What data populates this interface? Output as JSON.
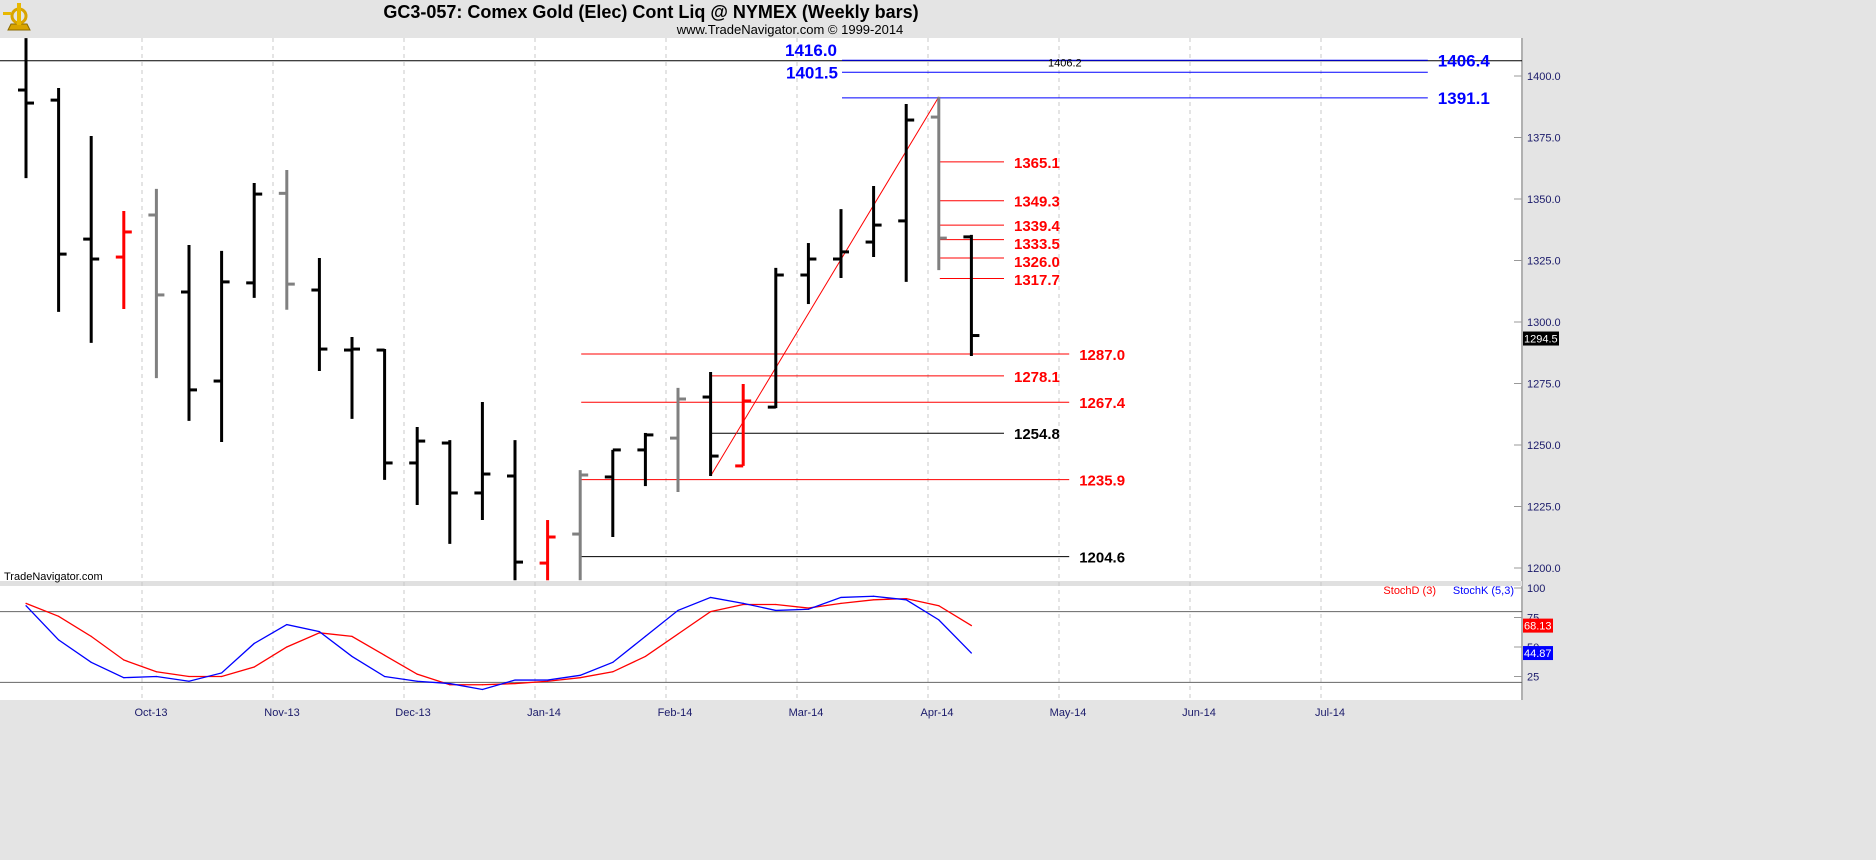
{
  "header": {
    "title": "GC3-057:  Comex Gold (Elec) Cont Liq @ NYMEX  (Weekly bars)",
    "subtitle": "www.TradeNavigator.com © 1999-2014",
    "logo_icon": "gold-sextant-logo-icon"
  },
  "watermark": "TradeNavigator.com",
  "colors": {
    "up_bar": "#000000",
    "inside_bar": "#808080",
    "outside_bar": "#ff0000",
    "blue": "#0000ff",
    "red": "#ff0000",
    "axis_bg": "#e4e4e4"
  },
  "chart_data": [
    {
      "type": "ohlc",
      "title": "GC3-057:  Comex Gold (Elec) Cont Liq @ NYMEX  (Weekly bars)",
      "ylim": [
        1195,
        1418
      ],
      "yticks": [
        "1200.0",
        "1225.0",
        "1250.0",
        "1275.0",
        "1300.0",
        "1325.0",
        "1350.0",
        "1375.0",
        "1400.0"
      ],
      "xticks": [
        "Oct-13",
        "Nov-13",
        "Dec-13",
        "Jan-14",
        "Feb-14",
        "Mar-14",
        "Apr-14",
        "May-14",
        "Jun-14",
        "Jul-14"
      ],
      "grid": true,
      "last_price": "1294.5",
      "bars": [
        {
          "date": "2013-09-13",
          "o": 1394.3,
          "h": 1415.4,
          "l": 1358.5,
          "c": 1389.0,
          "color": "black"
        },
        {
          "date": "2013-09-20",
          "o": 1390.2,
          "h": 1395.1,
          "l": 1304.1,
          "c": 1327.6,
          "color": "black"
        },
        {
          "date": "2013-09-27",
          "o": 1333.7,
          "h": 1375.6,
          "l": 1291.5,
          "c": 1325.6,
          "color": "black"
        },
        {
          "date": "2013-10-04",
          "o": 1326.4,
          "h": 1345.1,
          "l": 1305.3,
          "c": 1336.6,
          "color": "red"
        },
        {
          "date": "2013-10-11",
          "o": 1343.5,
          "h": 1354.1,
          "l": 1277.2,
          "c": 1311.0,
          "color": "gray"
        },
        {
          "date": "2013-10-18",
          "o": 1312.2,
          "h": 1331.3,
          "l": 1259.8,
          "c": 1272.4,
          "color": "black"
        },
        {
          "date": "2013-10-25",
          "o": 1276.0,
          "h": 1328.9,
          "l": 1251.2,
          "c": 1316.3,
          "color": "black"
        },
        {
          "date": "2013-11-01",
          "o": 1315.9,
          "h": 1356.5,
          "l": 1309.8,
          "c": 1352.0,
          "color": "black"
        },
        {
          "date": "2013-11-08",
          "o": 1352.3,
          "h": 1361.8,
          "l": 1305.0,
          "c": 1315.4,
          "color": "gray"
        },
        {
          "date": "2013-11-15",
          "o": 1313.0,
          "h": 1326.0,
          "l": 1280.1,
          "c": 1289.0,
          "color": "black"
        },
        {
          "date": "2013-11-22",
          "o": 1288.6,
          "h": 1293.9,
          "l": 1260.6,
          "c": 1289.0,
          "color": "black"
        },
        {
          "date": "2013-11-29",
          "o": 1288.6,
          "h": 1289.0,
          "l": 1235.8,
          "c": 1242.7,
          "color": "black"
        },
        {
          "date": "2013-12-06",
          "o": 1242.7,
          "h": 1257.3,
          "l": 1225.6,
          "c": 1251.6,
          "color": "black"
        },
        {
          "date": "2013-12-13",
          "o": 1250.8,
          "h": 1252.0,
          "l": 1209.8,
          "c": 1230.5,
          "color": "black"
        },
        {
          "date": "2013-12-20",
          "o": 1230.5,
          "h": 1267.5,
          "l": 1219.5,
          "c": 1238.2,
          "color": "black"
        },
        {
          "date": "2013-12-27",
          "o": 1237.4,
          "h": 1252.0,
          "l": 1195.0,
          "c": 1202.4,
          "color": "black"
        },
        {
          "date": "2014-01-03",
          "o": 1202.0,
          "h": 1219.5,
          "l": 1195.0,
          "c": 1212.6,
          "color": "red"
        },
        {
          "date": "2014-01-10",
          "o": 1213.8,
          "h": 1239.8,
          "l": 1195.0,
          "c": 1237.8,
          "color": "gray"
        },
        {
          "date": "2014-01-17",
          "o": 1237.0,
          "h": 1248.0,
          "l": 1212.6,
          "c": 1248.0,
          "color": "black"
        },
        {
          "date": "2014-01-24",
          "o": 1248.0,
          "h": 1254.9,
          "l": 1233.3,
          "c": 1254.1,
          "color": "black"
        },
        {
          "date": "2014-01-31",
          "o": 1252.8,
          "h": 1273.2,
          "l": 1230.9,
          "c": 1268.7,
          "color": "gray"
        },
        {
          "date": "2014-02-07",
          "o": 1269.5,
          "h": 1279.7,
          "l": 1237.4,
          "c": 1245.5,
          "color": "black"
        },
        {
          "date": "2014-02-14",
          "o": 1241.5,
          "h": 1274.8,
          "l": 1241.5,
          "c": 1267.9,
          "color": "red"
        },
        {
          "date": "2014-02-21",
          "o": 1265.4,
          "h": 1322.0,
          "l": 1265.0,
          "c": 1319.1,
          "color": "black"
        },
        {
          "date": "2014-02-28",
          "o": 1319.1,
          "h": 1332.1,
          "l": 1307.3,
          "c": 1325.6,
          "color": "black"
        },
        {
          "date": "2014-03-07",
          "o": 1325.6,
          "h": 1345.9,
          "l": 1317.9,
          "c": 1328.5,
          "color": "black"
        },
        {
          "date": "2014-03-14",
          "o": 1332.5,
          "h": 1355.3,
          "l": 1326.4,
          "c": 1339.4,
          "color": "black"
        },
        {
          "date": "2014-03-21",
          "o": 1341.1,
          "h": 1388.6,
          "l": 1316.3,
          "c": 1382.1,
          "color": "black"
        },
        {
          "date": "2014-03-28",
          "o": 1383.3,
          "h": 1391.5,
          "l": 1321.1,
          "c": 1334.1,
          "color": "gray"
        },
        {
          "date": "2014-04-04",
          "o": 1334.6,
          "h": 1335.4,
          "l": 1286.2,
          "c": 1294.5,
          "color": "black"
        }
      ],
      "levels": [
        {
          "value": 1416.0,
          "label": "1416.0",
          "color": "blue",
          "from_bar": 25,
          "to_bar": null,
          "label_at": "left-top"
        },
        {
          "value": 1406.2,
          "label": "1406.2",
          "color": "black",
          "from_bar": null,
          "to_bar": null,
          "label_at": "mid"
        },
        {
          "value": 1406.4,
          "label": "1406.4",
          "color": "blue",
          "from_bar": 25,
          "to_bar": 43,
          "label_at": "right"
        },
        {
          "value": 1401.5,
          "label": "1401.5",
          "color": "blue",
          "from_bar": 25,
          "to_bar": 43,
          "label_at": "left"
        },
        {
          "value": 1391.1,
          "label": "1391.1",
          "color": "blue",
          "from_bar": 25,
          "to_bar": 43,
          "label_at": "right"
        },
        {
          "value": 1365.1,
          "label": "1365.1",
          "color": "red",
          "from_bar": 28,
          "to_bar": 30,
          "label_at": "right"
        },
        {
          "value": 1349.3,
          "label": "1349.3",
          "color": "red",
          "from_bar": 28,
          "to_bar": 30,
          "label_at": "right"
        },
        {
          "value": 1339.4,
          "label": "1339.4",
          "color": "red",
          "from_bar": 28,
          "to_bar": 30,
          "label_at": "right"
        },
        {
          "value": 1333.5,
          "label": "1333.5",
          "color": "red",
          "from_bar": 28,
          "to_bar": 30,
          "label_at": "right"
        },
        {
          "value": 1326.0,
          "label": "1326.0",
          "color": "red",
          "from_bar": 28,
          "to_bar": 30,
          "label_at": "right"
        },
        {
          "value": 1317.7,
          "label": "1317.7",
          "color": "red",
          "from_bar": 28,
          "to_bar": 30,
          "label_at": "right"
        },
        {
          "value": 1287.0,
          "label": "1287.0",
          "color": "red",
          "from_bar": 17,
          "to_bar": 32,
          "label_at": "right"
        },
        {
          "value": 1278.1,
          "label": "1278.1",
          "color": "red",
          "from_bar": 21,
          "to_bar": 30,
          "label_at": "right"
        },
        {
          "value": 1267.4,
          "label": "1267.4",
          "color": "red",
          "from_bar": 17,
          "to_bar": 32,
          "label_at": "right"
        },
        {
          "value": 1254.8,
          "label": "1254.8",
          "color": "black",
          "from_bar": 21,
          "to_bar": 30,
          "label_at": "right"
        },
        {
          "value": 1235.9,
          "label": "1235.9",
          "color": "red",
          "from_bar": 17,
          "to_bar": 32,
          "label_at": "right"
        },
        {
          "value": 1204.6,
          "label": "1204.6",
          "color": "black",
          "from_bar": 17,
          "to_bar": 32,
          "label_at": "right"
        }
      ],
      "trendline": {
        "from": {
          "date": "2014-02-07",
          "value": 1237.4
        },
        "to": {
          "date": "2014-03-28",
          "value": 1391.5
        },
        "color": "red"
      }
    },
    {
      "type": "line",
      "ylim": [
        0,
        100
      ],
      "yticks": [
        "25",
        "50",
        "75",
        "100"
      ],
      "reference_lines": [
        80,
        20
      ],
      "legend": "top-right",
      "series": [
        {
          "name": "StochD (3)",
          "color": "#ff0000",
          "last": "68.13",
          "values": [
            87,
            76,
            59,
            39,
            29,
            25,
            25,
            33,
            50,
            62,
            59,
            43,
            27,
            18,
            18,
            19,
            21,
            24,
            29,
            42,
            61,
            80,
            86,
            86,
            83,
            87,
            90,
            91,
            85,
            68.13
          ]
        },
        {
          "name": "StochK (5,3)",
          "color": "#0000ff",
          "last": "44.87",
          "values": [
            85,
            56,
            37,
            24,
            25,
            21,
            28,
            53,
            69,
            63,
            42,
            25,
            21,
            19,
            14,
            22,
            22,
            26,
            37,
            59,
            81,
            92,
            87,
            81,
            82,
            92,
            93,
            90,
            73,
            44.87
          ]
        }
      ]
    }
  ]
}
